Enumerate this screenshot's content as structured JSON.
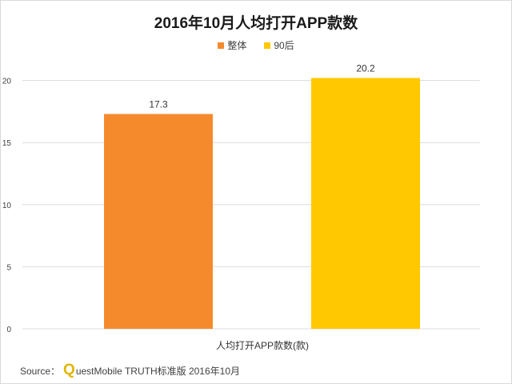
{
  "colors": {
    "series1": "#f58a2c",
    "series2": "#ffc800",
    "grid": "#dcdcdc",
    "axis_text": "#404040"
  },
  "chart_data": {
    "type": "bar",
    "title": "2016年10月人均打开APP款数",
    "categories": [
      "人均打开APP款数(款)"
    ],
    "series": [
      {
        "name": "整体",
        "values": [
          17.3
        ]
      },
      {
        "name": "90后",
        "values": [
          20.2
        ]
      }
    ],
    "data_labels": [
      "17.3",
      "20.2"
    ],
    "ylim": [
      0,
      22
    ],
    "yticks": [
      0,
      5,
      10,
      15,
      20
    ],
    "grid": true,
    "legend_position": "top-center"
  },
  "source": {
    "prefix": "Source：",
    "logo_letter": "Q",
    "text": "uestMobile TRUTH标准版 2016年10月"
  }
}
